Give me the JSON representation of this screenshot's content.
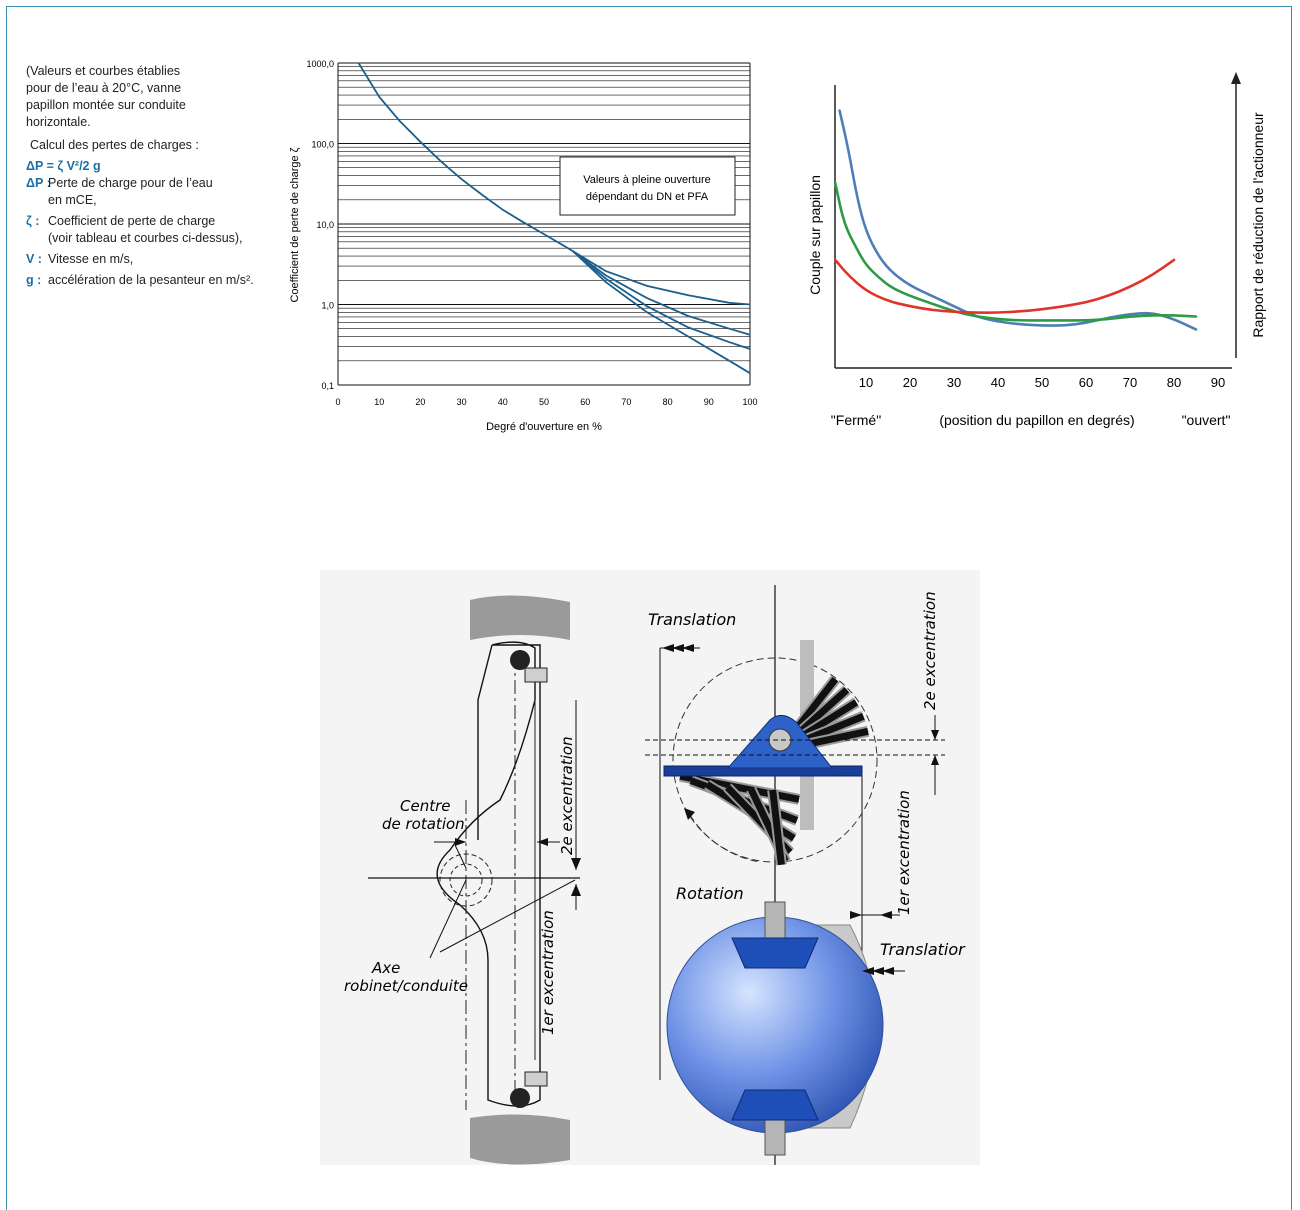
{
  "notes": {
    "intro": [
      "(Valeurs et courbes établies",
      "pour de l’eau à 20°C, vanne",
      "papillon montée sur conduite",
      "horizontale."
    ],
    "calc_title": "Calcul des pertes de charges :",
    "formula": "ΔP = ζ V²/2 g",
    "defs": [
      {
        "sym": "ΔP :",
        "lines": [
          "Perte de charge pour de l’eau",
          "en mCE,"
        ]
      },
      {
        "sym": "ζ :",
        "lines": [
          "Coefficient de perte de charge",
          "(voir tableau et courbes ci-dessus),"
        ]
      },
      {
        "sym": "V :",
        "lines": [
          "Vitesse en m/s,"
        ]
      },
      {
        "sym": "g :",
        "lines": [
          "accélération de la pesanteur en m/s²."
        ]
      }
    ]
  },
  "chart_data": [
    {
      "type": "line",
      "title": "",
      "xlabel": "Degré d'ouverture en %",
      "ylabel": "Coefficient de perte de charge ζ",
      "yscale": "log",
      "xlim": [
        0,
        100
      ],
      "ylim": [
        0.1,
        1000
      ],
      "x_ticks": [
        "0",
        "10",
        "20",
        "30",
        "40",
        "50",
        "60",
        "70",
        "80",
        "90",
        "100"
      ],
      "y_ticks": [
        "0,1",
        "1,0",
        "10,0",
        "100,0",
        "1000,0"
      ],
      "grid": true,
      "annotation": [
        "Valeurs à pleine ouverture",
        "dépendant du DN et PFA"
      ],
      "colors": {
        "curve": "#1b5f8c",
        "grid": "#111111"
      },
      "series": [
        {
          "x": [
            5,
            10,
            15,
            20,
            25,
            30,
            35,
            40,
            45,
            50,
            55,
            57
          ],
          "y": [
            1000,
            380,
            190,
            105,
            60,
            36,
            23,
            15,
            10.5,
            7.5,
            5.3,
            4.6
          ]
        },
        {
          "x": [
            57,
            65,
            75,
            85,
            95,
            100
          ],
          "y": [
            4.6,
            2.6,
            1.7,
            1.3,
            1.05,
            1.0
          ]
        },
        {
          "x": [
            57,
            65,
            75,
            85,
            95,
            100
          ],
          "y": [
            4.6,
            2.3,
            1.2,
            0.72,
            0.5,
            0.42
          ]
        },
        {
          "x": [
            57,
            65,
            75,
            85,
            95,
            100
          ],
          "y": [
            4.6,
            2.1,
            0.95,
            0.52,
            0.34,
            0.28
          ]
        },
        {
          "x": [
            57,
            65,
            75,
            85,
            95,
            100
          ],
          "y": [
            4.6,
            1.9,
            0.8,
            0.4,
            0.2,
            0.14
          ]
        }
      ]
    },
    {
      "type": "line",
      "title": "",
      "ylabel": "Couple sur papillon",
      "y2label": "Rapport de réduction de l'actionneur",
      "xlim": [
        0,
        90
      ],
      "x_ticks": [
        "10",
        "20",
        "30",
        "40",
        "50",
        "60",
        "70",
        "80",
        "90"
      ],
      "bottom_labels": {
        "left": "\"Fermé\"",
        "center": "(position du papillon en degrés)",
        "right": "\"ouvert\""
      },
      "series": [
        {
          "color": "#4f7eb6",
          "x": [
            4,
            6,
            8,
            10,
            13,
            16,
            20,
            25,
            30,
            35,
            40,
            45,
            50,
            55,
            60,
            65,
            70,
            75,
            80,
            85
          ],
          "y": [
            100,
            85,
            66,
            53,
            43,
            37,
            32,
            28,
            24,
            20,
            18,
            17,
            16.5,
            16.5,
            17.5,
            19.5,
            21,
            21.5,
            19,
            15
          ]
        },
        {
          "color": "#2e9a43",
          "x": [
            3,
            5,
            8,
            10,
            13,
            16,
            20,
            25,
            30,
            35,
            40,
            45,
            50,
            55,
            60,
            65,
            70,
            75,
            80,
            85
          ],
          "y": [
            72,
            56,
            46,
            40,
            35,
            31,
            28,
            25,
            22,
            20,
            19,
            18.5,
            18.5,
            18.5,
            18.5,
            19,
            20,
            20.5,
            20.5,
            20
          ]
        },
        {
          "color": "#e0342a",
          "x": [
            3,
            6,
            10,
            15,
            20,
            25,
            30,
            35,
            40,
            45,
            50,
            55,
            60,
            65,
            70,
            75,
            80
          ],
          "y": [
            42,
            36,
            30,
            26,
            24,
            22.5,
            21.8,
            21.5,
            21.5,
            22,
            22.8,
            24,
            25.5,
            28,
            31.5,
            36,
            42
          ]
        }
      ]
    }
  ],
  "diagram": {
    "left": {
      "centre_label": [
        "Centre",
        "de rotation"
      ],
      "axe_label": [
        "Axe",
        "robinet/conduite"
      ],
      "exc2": "2e excentration",
      "exc1": "1er excentration"
    },
    "right": {
      "translation_top": "Translation",
      "rotation": "Rotation",
      "translation_bottom": "Translatior",
      "exc2": "2e excentration",
      "exc1": "1er excentration"
    }
  }
}
